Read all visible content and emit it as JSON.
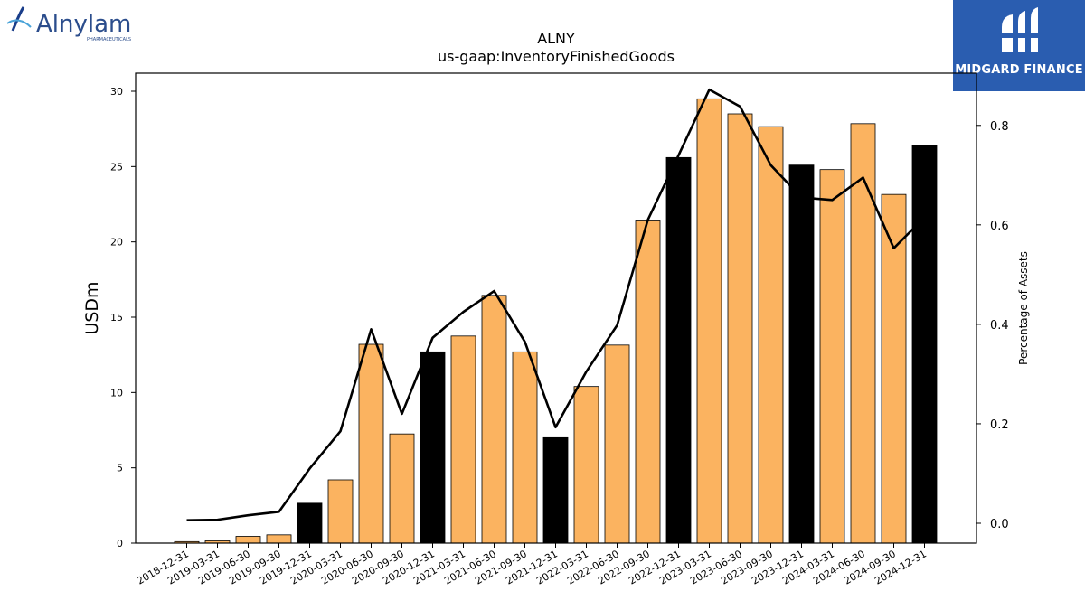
{
  "branding": {
    "company_logo_text": "Alnylam",
    "company_logo_subtext": "PHARMACEUTICALS",
    "publisher_logo_text": "MIDGARD FINANCE"
  },
  "chart_data": {
    "type": "bar",
    "title": "ALNY",
    "subtitle": "us-gaap:InventoryFinishedGoods",
    "ylabel": "USDm",
    "y2label": "Percentage of Assets",
    "ylim": [
      0,
      31.2
    ],
    "y2lim": [
      -0.04,
      0.905
    ],
    "yticks": [
      0,
      5,
      10,
      15,
      20,
      25,
      30
    ],
    "y2ticks": [
      "0.0",
      "0.2",
      "0.4",
      "0.6",
      "0.8"
    ],
    "categories": [
      "2018-12-31",
      "2019-03-31",
      "2019-06-30",
      "2019-09-30",
      "2019-12-31",
      "2020-03-31",
      "2020-06-30",
      "2020-09-30",
      "2020-12-31",
      "2021-03-31",
      "2021-06-30",
      "2021-09-30",
      "2021-12-31",
      "2022-03-31",
      "2022-06-30",
      "2022-09-30",
      "2022-12-31",
      "2023-03-31",
      "2023-06-30",
      "2023-09-30",
      "2023-12-31",
      "2024-03-31",
      "2024-06-30",
      "2024-09-30",
      "2024-12-31"
    ],
    "series": [
      {
        "type": "bar",
        "values": [
          0.1,
          0.15,
          0.45,
          0.55,
          2.65,
          4.2,
          13.2,
          7.25,
          12.7,
          13.75,
          16.45,
          12.7,
          7.0,
          10.4,
          13.15,
          21.45,
          25.6,
          29.5,
          28.5,
          27.65,
          25.1,
          24.8,
          27.85,
          23.15,
          26.4
        ],
        "colors": [
          "#fbb360",
          "#fbb360",
          "#fbb360",
          "#fbb360",
          "#000000",
          "#fbb360",
          "#fbb360",
          "#fbb360",
          "#000000",
          "#fbb360",
          "#fbb360",
          "#fbb360",
          "#000000",
          "#fbb360",
          "#fbb360",
          "#fbb360",
          "#000000",
          "#fbb360",
          "#fbb360",
          "#fbb360",
          "#000000",
          "#fbb360",
          "#fbb360",
          "#fbb360",
          "#000000"
        ]
      },
      {
        "type": "line",
        "axis": "right",
        "color": "#000000",
        "values": [
          0.006,
          0.007,
          0.016,
          0.023,
          0.11,
          0.185,
          0.39,
          0.22,
          0.373,
          0.425,
          0.467,
          0.365,
          0.193,
          0.305,
          0.398,
          0.61,
          0.74,
          0.872,
          0.838,
          0.72,
          0.655,
          0.65,
          0.695,
          0.553,
          0.615
        ]
      }
    ],
    "grid": false,
    "legend": "none"
  }
}
